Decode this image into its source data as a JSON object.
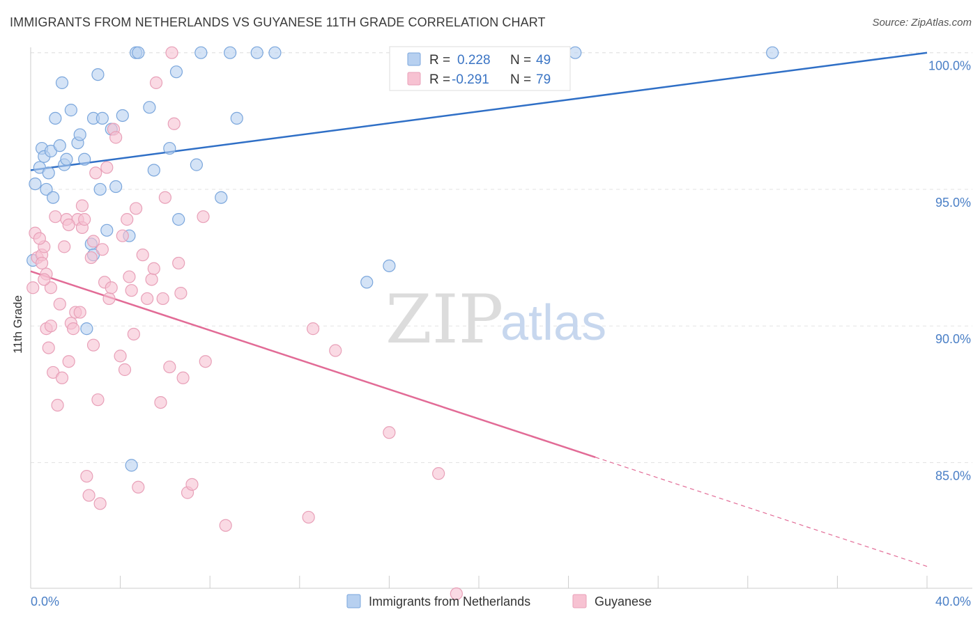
{
  "title": "IMMIGRANTS FROM NETHERLANDS VS GUYANESE 11TH GRADE CORRELATION CHART",
  "source": "Source: ZipAtlas.com",
  "watermark": {
    "zip": "ZIP",
    "atlas": "atlas"
  },
  "colors": {
    "netherlands_fill": "#b7d0f0",
    "netherlands_stroke": "#7aa6dc",
    "netherlands_line": "#2f6fc6",
    "guyanese_fill": "#f7c2d2",
    "guyanese_stroke": "#e8a0b8",
    "guyanese_line": "#e26b96",
    "tick_label": "#4a7fc6",
    "grid": "#e3e3e3"
  },
  "legend": {
    "r_label": "R =",
    "n_label": "N =",
    "rows": [
      {
        "r": "0.228",
        "n": "49"
      },
      {
        "r": "-0.291",
        "n": "79"
      }
    ]
  },
  "chart_data": {
    "type": "scatter",
    "xlabel": "",
    "ylabel": "11th Grade",
    "x_tick_labels": [
      "0.0%",
      "40.0%"
    ],
    "y_tick_labels": [
      "100.0%",
      "95.0%",
      "90.0%",
      "85.0%"
    ],
    "y_ticks": [
      100,
      95,
      90,
      85
    ],
    "xlim": [
      0,
      40
    ],
    "ylim": [
      80.4,
      100.4
    ],
    "grid": true,
    "legend_position": "top-center",
    "series": [
      {
        "name": "Immigrants from Netherlands",
        "r": 0.228,
        "n": 49,
        "trend": {
          "x0": 0,
          "y0": 95.7,
          "x1": 40,
          "y1": 100.0,
          "dashed_from": null
        },
        "points": [
          [
            0.2,
            95.2
          ],
          [
            0.4,
            95.8
          ],
          [
            0.5,
            96.5
          ],
          [
            0.6,
            96.2
          ],
          [
            0.7,
            95.0
          ],
          [
            0.8,
            95.6
          ],
          [
            0.9,
            96.4
          ],
          [
            1.0,
            94.7
          ],
          [
            1.1,
            97.6
          ],
          [
            1.3,
            96.6
          ],
          [
            1.4,
            98.9
          ],
          [
            1.5,
            95.9
          ],
          [
            1.6,
            96.1
          ],
          [
            1.8,
            97.9
          ],
          [
            2.1,
            96.7
          ],
          [
            2.2,
            97.0
          ],
          [
            2.4,
            96.1
          ],
          [
            2.5,
            89.9
          ],
          [
            2.7,
            93.0
          ],
          [
            2.8,
            92.6
          ],
          [
            2.8,
            97.6
          ],
          [
            3.0,
            99.2
          ],
          [
            3.1,
            95.0
          ],
          [
            3.2,
            97.6
          ],
          [
            3.4,
            93.5
          ],
          [
            3.6,
            97.2
          ],
          [
            3.8,
            95.1
          ],
          [
            4.1,
            97.7
          ],
          [
            4.4,
            93.3
          ],
          [
            4.5,
            84.9
          ],
          [
            4.7,
            100.0
          ],
          [
            4.8,
            100.0
          ],
          [
            5.3,
            98.0
          ],
          [
            5.5,
            95.7
          ],
          [
            6.2,
            96.5
          ],
          [
            6.5,
            99.3
          ],
          [
            6.6,
            93.9
          ],
          [
            7.4,
            95.9
          ],
          [
            7.6,
            100.0
          ],
          [
            8.5,
            94.7
          ],
          [
            8.9,
            100.0
          ],
          [
            9.2,
            97.6
          ],
          [
            10.1,
            100.0
          ],
          [
            10.9,
            100.0
          ],
          [
            15.0,
            91.6
          ],
          [
            16.0,
            92.2
          ],
          [
            24.3,
            100.0
          ],
          [
            33.1,
            100.0
          ],
          [
            0.1,
            92.4
          ]
        ]
      },
      {
        "name": "Guyanese",
        "r": -0.291,
        "n": 79,
        "trend": {
          "x0": 0,
          "y0": 92.0,
          "x1": 40,
          "y1": 81.2,
          "dashed_from": 25.2
        },
        "points": [
          [
            0.1,
            91.4
          ],
          [
            0.2,
            93.4
          ],
          [
            0.3,
            92.5
          ],
          [
            0.5,
            92.6
          ],
          [
            0.6,
            92.9
          ],
          [
            0.7,
            91.9
          ],
          [
            0.7,
            89.9
          ],
          [
            0.8,
            89.2
          ],
          [
            0.9,
            91.4
          ],
          [
            0.9,
            90.0
          ],
          [
            1.0,
            88.3
          ],
          [
            1.2,
            87.1
          ],
          [
            1.3,
            90.8
          ],
          [
            1.4,
            88.1
          ],
          [
            1.5,
            92.9
          ],
          [
            1.6,
            93.9
          ],
          [
            1.7,
            88.7
          ],
          [
            1.8,
            90.1
          ],
          [
            1.9,
            89.9
          ],
          [
            2.0,
            90.5
          ],
          [
            2.1,
            93.9
          ],
          [
            2.2,
            90.5
          ],
          [
            2.3,
            94.4
          ],
          [
            2.3,
            93.6
          ],
          [
            2.4,
            93.9
          ],
          [
            2.5,
            84.5
          ],
          [
            2.6,
            83.8
          ],
          [
            2.7,
            92.5
          ],
          [
            2.8,
            93.1
          ],
          [
            2.8,
            89.3
          ],
          [
            2.9,
            95.6
          ],
          [
            3.0,
            87.3
          ],
          [
            3.1,
            83.5
          ],
          [
            3.2,
            92.8
          ],
          [
            3.3,
            91.6
          ],
          [
            3.4,
            95.8
          ],
          [
            3.5,
            91.0
          ],
          [
            3.6,
            91.4
          ],
          [
            3.7,
            97.2
          ],
          [
            3.8,
            96.9
          ],
          [
            4.0,
            88.9
          ],
          [
            4.1,
            93.3
          ],
          [
            4.2,
            88.4
          ],
          [
            4.3,
            93.9
          ],
          [
            4.4,
            91.8
          ],
          [
            4.5,
            91.3
          ],
          [
            4.6,
            89.7
          ],
          [
            4.7,
            94.3
          ],
          [
            4.8,
            84.1
          ],
          [
            5.0,
            92.6
          ],
          [
            5.2,
            91.0
          ],
          [
            5.4,
            91.7
          ],
          [
            5.5,
            92.1
          ],
          [
            5.6,
            98.9
          ],
          [
            5.8,
            87.2
          ],
          [
            5.9,
            91.0
          ],
          [
            6.0,
            94.7
          ],
          [
            6.2,
            88.5
          ],
          [
            6.3,
            100.0
          ],
          [
            6.4,
            97.4
          ],
          [
            6.6,
            92.3
          ],
          [
            6.7,
            91.2
          ],
          [
            6.8,
            88.1
          ],
          [
            7.0,
            83.9
          ],
          [
            7.2,
            84.2
          ],
          [
            7.7,
            94.0
          ],
          [
            7.8,
            88.7
          ],
          [
            8.7,
            82.7
          ],
          [
            12.4,
            83.0
          ],
          [
            12.6,
            89.9
          ],
          [
            13.6,
            89.1
          ],
          [
            16.0,
            86.1
          ],
          [
            18.2,
            84.6
          ],
          [
            19.0,
            80.2
          ],
          [
            0.4,
            93.2
          ],
          [
            0.5,
            92.3
          ],
          [
            0.6,
            91.7
          ],
          [
            1.1,
            94.0
          ],
          [
            1.7,
            93.7
          ]
        ]
      }
    ]
  }
}
